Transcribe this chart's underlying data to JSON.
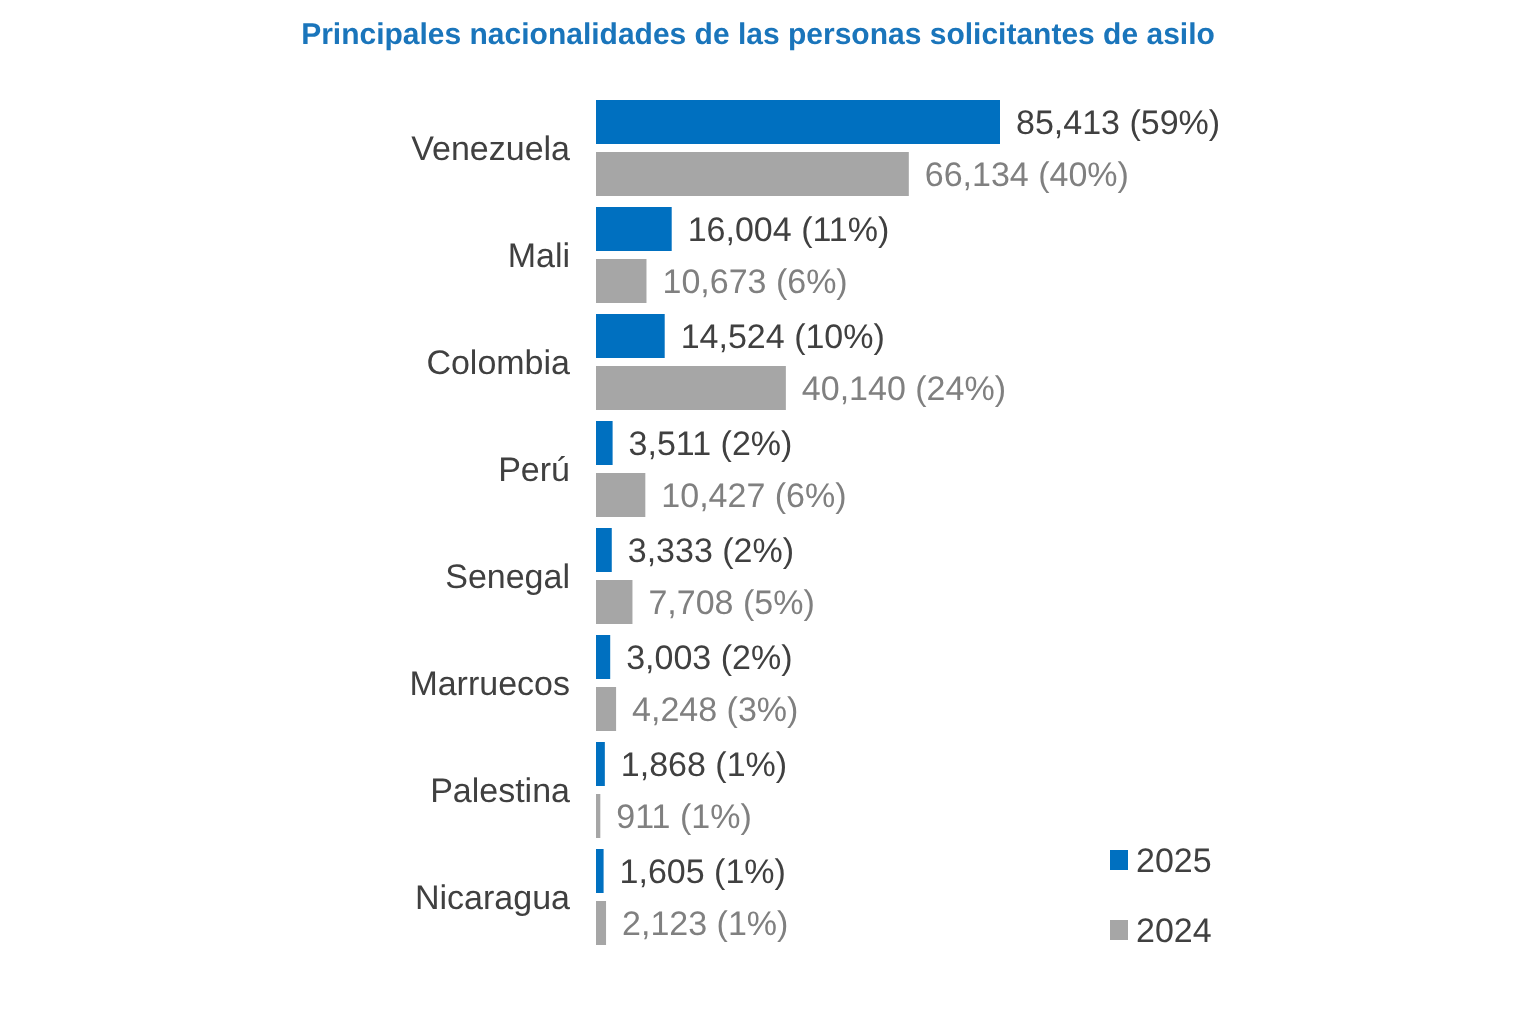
{
  "chart_data": {
    "type": "bar",
    "orientation": "horizontal",
    "title": "Principales nacionalidades de las personas solicitantes de asilo",
    "categories": [
      "Venezuela",
      "Mali",
      "Colombia",
      "Perú",
      "Senegal",
      "Marruecos",
      "Palestina",
      "Nicaragua"
    ],
    "series": [
      {
        "name": "2025",
        "color": "#0070c0",
        "values": [
          85413,
          16004,
          14524,
          3511,
          3333,
          3003,
          1868,
          1605
        ],
        "value_labels": [
          "85,413 (59%)",
          "16,004 (11%)",
          "14,524 (10%)",
          "3,511 (2%)",
          "3,333 (2%)",
          "3,003 (2%)",
          "1,868 (1%)",
          "1,605 (1%)"
        ]
      },
      {
        "name": "2024",
        "color": "#a6a6a6",
        "values": [
          66134,
          10673,
          40140,
          10427,
          7708,
          4248,
          911,
          2123
        ],
        "value_labels": [
          "66,134 (40%)",
          "10,673 (6%)",
          "40,140 (24%)",
          "10,427 (6%)",
          "7,708 (5%)",
          "4,248 (3%)",
          "911 (1%)",
          "2,123 (1%)"
        ]
      }
    ],
    "legend": "bottom right"
  }
}
